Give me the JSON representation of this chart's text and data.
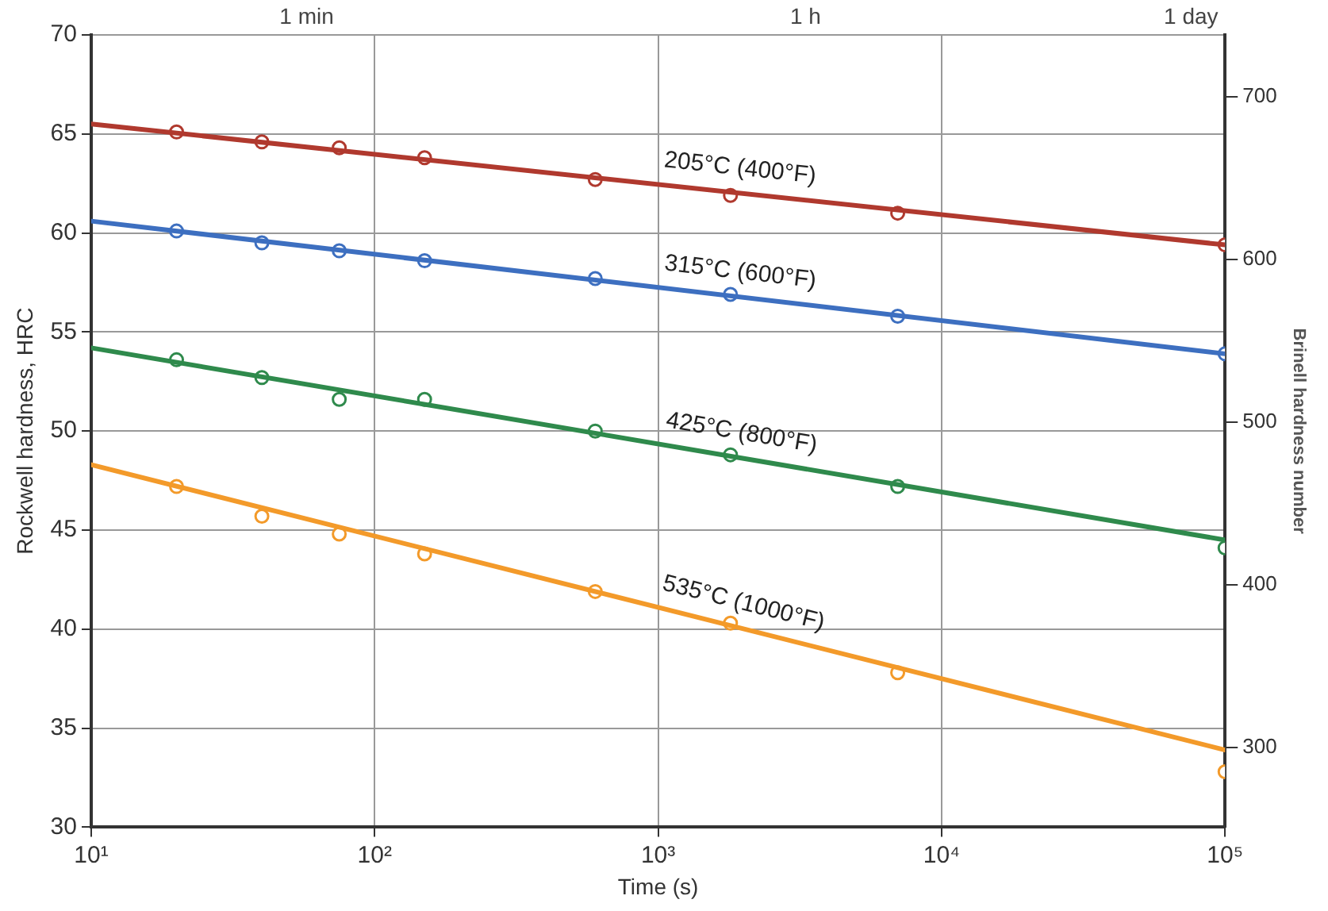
{
  "chart_data": {
    "type": "line",
    "xlabel": "Time (s)",
    "ylabel": "Rockwell hardness, HRC",
    "y2label": "Brinell hardness number",
    "log": "x",
    "grid": true,
    "legend": false,
    "xlim": [
      10,
      100000
    ],
    "xticks": [
      {
        "value": 10,
        "label": "10¹"
      },
      {
        "value": 100,
        "label": "10²"
      },
      {
        "value": 1000,
        "label": "10³"
      },
      {
        "value": 10000,
        "label": "10⁴"
      },
      {
        "value": 100000,
        "label": "10⁵"
      }
    ],
    "annotations": [
      "1 min",
      "1 h",
      "1 day"
    ],
    "ylim": [
      30,
      70
    ],
    "yticks": [
      30,
      35,
      40,
      45,
      50,
      55,
      60,
      65,
      70
    ],
    "y2lim": [
      251,
      738
    ],
    "y2ticks": [
      300,
      400,
      500,
      600,
      700
    ],
    "series": [
      {
        "name": "205°C (400°F)",
        "marker": "none",
        "color": "#b0392e",
        "x": [
          10,
          100000
        ],
        "values": [
          65.5,
          59.4
        ]
      },
      {
        "type": "scatter",
        "marker": "circle",
        "color": "#b0392e",
        "x": [
          20,
          40,
          75,
          150,
          600,
          1800,
          7000,
          100000
        ],
        "values": [
          65.1,
          64.6,
          64.3,
          63.8,
          62.7,
          61.9,
          61.0,
          59.4
        ]
      },
      {
        "name": "315°C (600°F)",
        "marker": "none",
        "color": "#3d6fc0",
        "x": [
          10,
          100000
        ],
        "values": [
          60.6,
          53.9
        ]
      },
      {
        "type": "scatter",
        "marker": "circle",
        "color": "#3d6fc0",
        "x": [
          20,
          40,
          75,
          150,
          600,
          1800,
          7000,
          100000
        ],
        "values": [
          60.1,
          59.5,
          59.1,
          58.6,
          57.7,
          56.9,
          55.8,
          53.9
        ]
      },
      {
        "name": "425°C (800°F)",
        "marker": "none",
        "color": "#2f8a4c",
        "x": [
          10,
          100000
        ],
        "values": [
          54.2,
          44.5
        ]
      },
      {
        "type": "scatter",
        "marker": "circle",
        "color": "#2f8a4c",
        "x": [
          20,
          40,
          75,
          150,
          600,
          1800,
          7000,
          100000
        ],
        "values": [
          53.6,
          52.7,
          51.6,
          51.6,
          50.0,
          48.8,
          47.2,
          44.1
        ]
      },
      {
        "name": "535°C (1000°F)",
        "marker": "none",
        "color": "#f39a2a",
        "x": [
          10,
          100000
        ],
        "values": [
          48.3,
          33.9
        ]
      },
      {
        "type": "scatter",
        "marker": "circle",
        "color": "#f39a2a",
        "x": [
          20,
          40,
          75,
          150,
          600,
          1800,
          7000,
          100000
        ],
        "values": [
          47.2,
          45.7,
          44.8,
          43.8,
          41.9,
          40.3,
          37.8,
          32.8
        ]
      }
    ]
  }
}
